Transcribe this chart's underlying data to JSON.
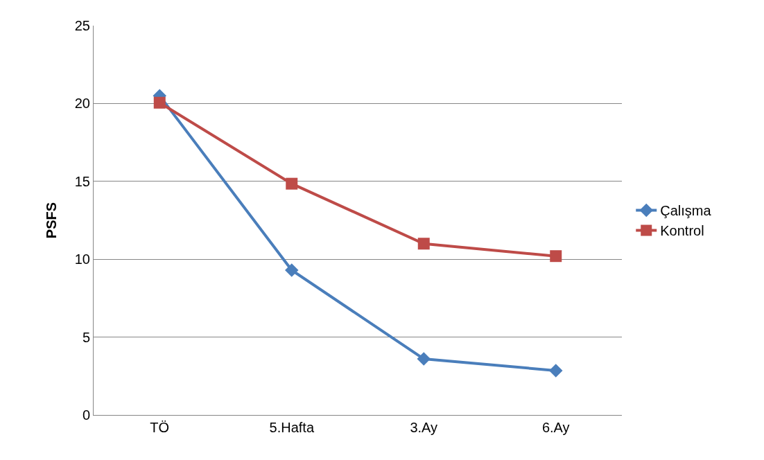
{
  "chart_data": {
    "type": "line",
    "ylabel": "PSFS",
    "categories": [
      "TÖ",
      "5.Hafta",
      "3.Ay",
      "6.Ay"
    ],
    "series": [
      {
        "name": "Çalışma",
        "color": "#4a7ebb",
        "marker": "diamond",
        "values": [
          20.5,
          9.3,
          3.6,
          2.85
        ]
      },
      {
        "name": "Kontrol",
        "color": "#be4b48",
        "marker": "square",
        "values": [
          20.05,
          14.85,
          11.0,
          10.2
        ]
      }
    ],
    "ylim": [
      0,
      25
    ],
    "yticks": [
      0,
      5,
      10,
      15,
      20,
      25
    ],
    "grid": "y",
    "legend": "right",
    "line_style": "solid"
  }
}
